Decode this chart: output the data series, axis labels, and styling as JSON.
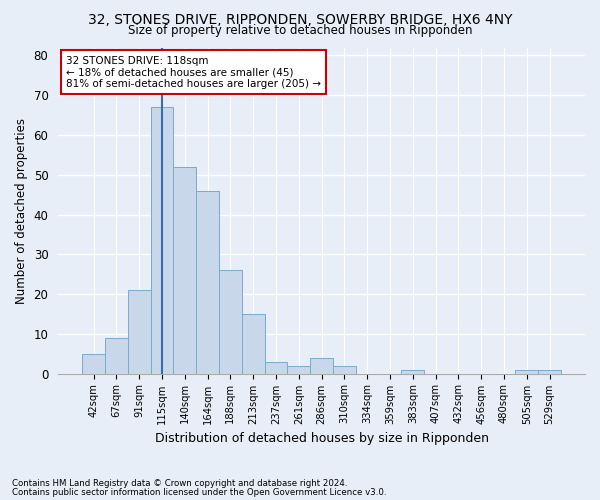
{
  "title1": "32, STONES DRIVE, RIPPONDEN, SOWERBY BRIDGE, HX6 4NY",
  "title2": "Size of property relative to detached houses in Ripponden",
  "xlabel": "Distribution of detached houses by size in Ripponden",
  "ylabel": "Number of detached properties",
  "bar_color": "#c8d8ea",
  "bar_edge_color": "#7aaacb",
  "categories": [
    "42sqm",
    "67sqm",
    "91sqm",
    "115sqm",
    "140sqm",
    "164sqm",
    "188sqm",
    "213sqm",
    "237sqm",
    "261sqm",
    "286sqm",
    "310sqm",
    "334sqm",
    "359sqm",
    "383sqm",
    "407sqm",
    "432sqm",
    "456sqm",
    "480sqm",
    "505sqm",
    "529sqm"
  ],
  "values": [
    5,
    9,
    21,
    67,
    52,
    46,
    26,
    15,
    3,
    2,
    4,
    2,
    0,
    0,
    1,
    0,
    0,
    0,
    0,
    1,
    1
  ],
  "highlight_bar_index": 3,
  "annotation_line1": "32 STONES DRIVE: 118sqm",
  "annotation_line2": "← 18% of detached houses are smaller (45)",
  "annotation_line3": "81% of semi-detached houses are larger (205) →",
  "ylim": [
    0,
    82
  ],
  "yticks": [
    0,
    10,
    20,
    30,
    40,
    50,
    60,
    70,
    80
  ],
  "footnote1": "Contains HM Land Registry data © Crown copyright and database right 2024.",
  "footnote2": "Contains public sector information licensed under the Open Government Licence v3.0.",
  "bg_color": "#e8eef8",
  "plot_bg_color": "#e8eef8",
  "grid_color": "#ffffff",
  "vline_color": "#3a6ab0",
  "ann_box_edge_color": "#cc0000",
  "ann_box_face_color": "#ffffff"
}
